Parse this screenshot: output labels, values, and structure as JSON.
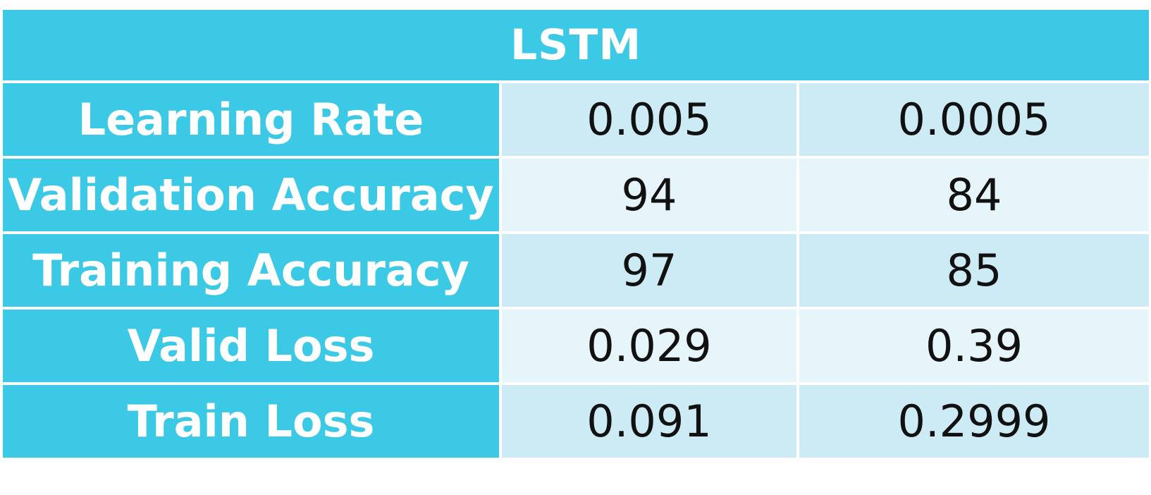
{
  "table": {
    "title": "LSTM",
    "rows": [
      {
        "label": "Learning Rate",
        "values": [
          "0.005",
          "0.0005"
        ]
      },
      {
        "label": "Validation Accuracy",
        "values": [
          "94",
          "84"
        ]
      },
      {
        "label": "Training Accuracy",
        "values": [
          "97",
          "85"
        ]
      },
      {
        "label": "Valid Loss",
        "values": [
          "0.029",
          "0.39"
        ]
      },
      {
        "label": "Train Loss",
        "values": [
          "0.091",
          "0.2999"
        ]
      }
    ]
  },
  "colors": {
    "header_bg": "#3cc9e6",
    "row_odd_bg": "#cdebf5",
    "row_even_bg": "#e6f5fa"
  }
}
